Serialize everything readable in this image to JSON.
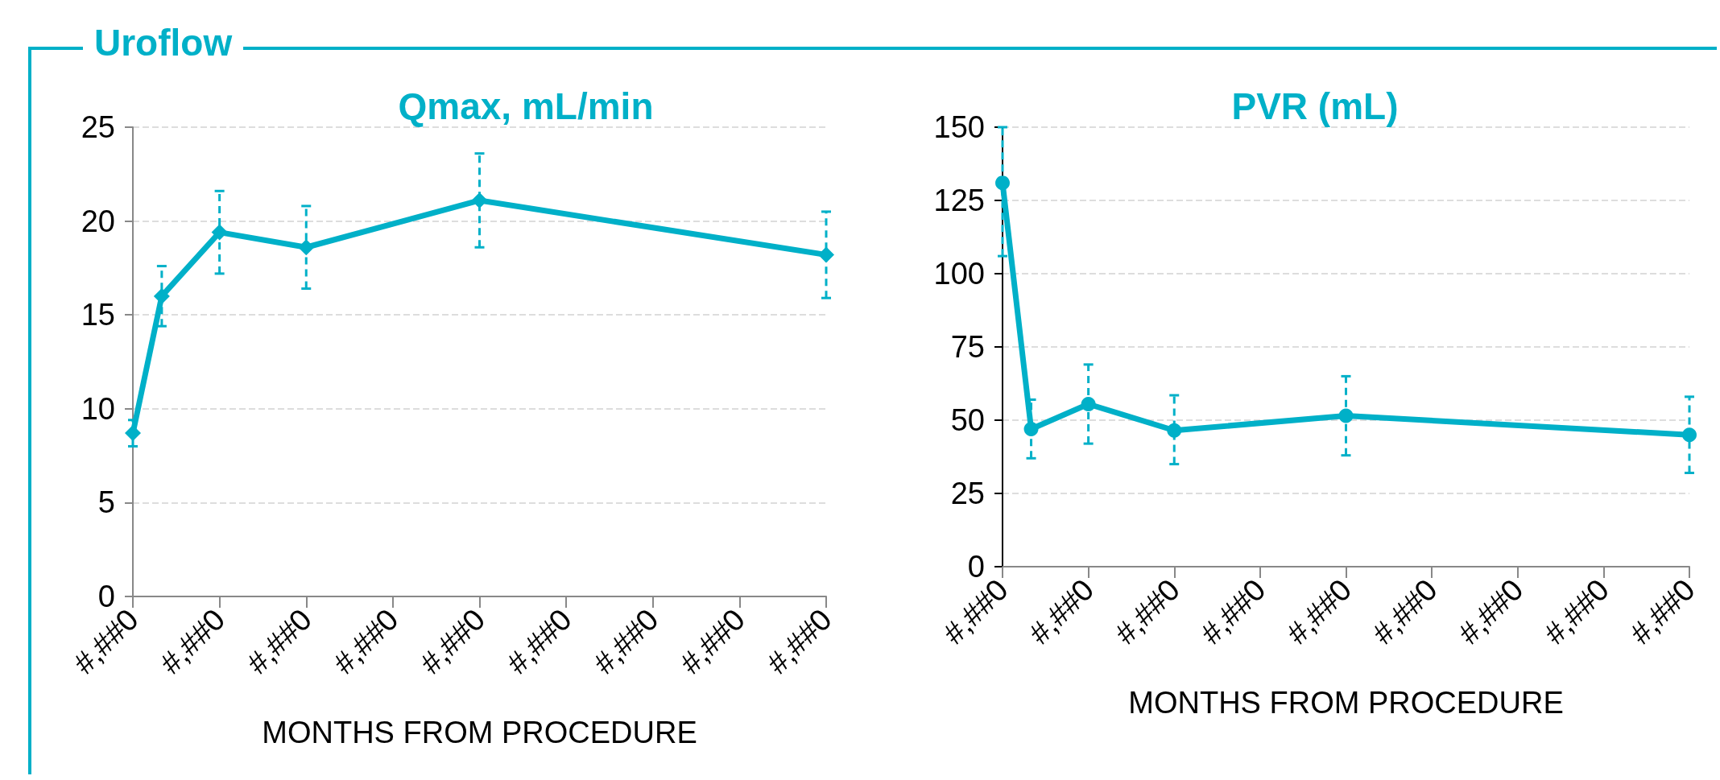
{
  "chart_data": [
    {
      "type": "line",
      "title": "Qmax, mL/min",
      "annotations": [
        "Uroflow"
      ],
      "xlabel": "MONTHS FROM PROCEDURE",
      "categories": [
        "#,##0",
        null,
        null,
        "#,##0",
        null,
        null,
        "#,##0",
        null,
        null,
        "#,##0",
        null,
        null,
        "#,##0",
        null,
        null,
        "#,##0",
        null,
        null,
        "#,##0",
        null,
        null,
        "#,##0",
        null,
        null,
        "#,##0"
      ],
      "series": [
        {
          "color": "#00b0c8",
          "values": [
            8.7,
            16.0,
            null,
            19.4,
            null,
            null,
            18.6,
            null,
            null,
            null,
            null,
            null,
            21.1,
            null,
            null,
            null,
            null,
            null,
            null,
            null,
            null,
            null,
            null,
            null,
            18.2
          ],
          "errors": [
            [
              8.0,
              9.4
            ],
            [
              14.4,
              17.6
            ],
            null,
            [
              17.2,
              21.6
            ],
            null,
            null,
            [
              16.4,
              20.8
            ],
            null,
            null,
            null,
            null,
            null,
            [
              18.6,
              23.6
            ],
            null,
            null,
            null,
            null,
            null,
            null,
            null,
            null,
            null,
            null,
            null,
            [
              15.9,
              20.5
            ]
          ]
        }
      ],
      "ylim": [
        0,
        25
      ],
      "yticks": [
        0,
        5,
        10,
        15,
        20,
        25
      ],
      "grid": "y",
      "marker": "diamond",
      "line_style": "solid"
    },
    {
      "type": "line",
      "title": "PVR (mL)",
      "xlabel": "MONTHS FROM PROCEDURE",
      "categories": [
        "#,##0",
        null,
        null,
        "#,##0",
        null,
        null,
        "#,##0",
        null,
        null,
        "#,##0",
        null,
        null,
        "#,##0",
        null,
        null,
        "#,##0",
        null,
        null,
        "#,##0",
        null,
        null,
        "#,##0",
        null,
        null,
        "#,##0"
      ],
      "series": [
        {
          "color": "#00b0c8",
          "values": [
            131,
            47,
            null,
            55.5,
            null,
            null,
            46.5,
            null,
            null,
            null,
            null,
            null,
            51.5,
            null,
            null,
            null,
            null,
            null,
            null,
            null,
            null,
            null,
            null,
            null,
            45
          ],
          "errors": [
            [
              106,
              150
            ],
            [
              37,
              57
            ],
            null,
            [
              42,
              69
            ],
            null,
            null,
            [
              35,
              58.5
            ],
            null,
            null,
            null,
            null,
            null,
            [
              38,
              65
            ],
            null,
            null,
            null,
            null,
            null,
            null,
            null,
            null,
            null,
            null,
            null,
            [
              32,
              58
            ]
          ]
        }
      ],
      "ylim": [
        0,
        150
      ],
      "yticks": [
        0,
        25,
        50,
        75,
        100,
        125,
        150
      ],
      "grid": "y",
      "marker": "circle",
      "line_style": "solid"
    }
  ]
}
